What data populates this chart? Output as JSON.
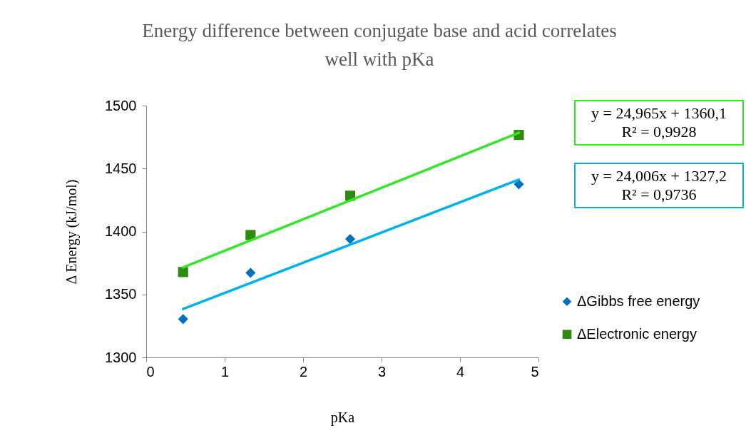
{
  "chart_data": {
    "type": "scatter",
    "title": [
      "Energy difference between conjugate base and acid correlates",
      "well with pKa"
    ],
    "xlabel": "pKa",
    "ylabel": "Δ Energy (kJ/mol)",
    "xlim": [
      0,
      5
    ],
    "xticks": [
      0,
      1,
      2,
      3,
      4,
      5
    ],
    "ylim": [
      1300,
      1500
    ],
    "yticks": [
      1300,
      1350,
      1400,
      1450,
      1500
    ],
    "legend": "right",
    "series": [
      {
        "name": "ΔGibbs free energy",
        "marker": "diamond",
        "color": "#0070c0",
        "x": [
          0.47,
          1.33,
          2.6,
          4.75
        ],
        "values": [
          1330.4,
          1367.2,
          1394,
          1437.5
        ]
      },
      {
        "name": "ΔElectronic energy",
        "marker": "square",
        "color": "#2e8b0e",
        "x": [
          0.47,
          1.33,
          2.6,
          4.75
        ],
        "values": [
          1367.8,
          1397.2,
          1428.4,
          1476.7
        ]
      },
      {
        "type": "line",
        "color": "#33e626",
        "x": [
          0.47,
          4.75
        ],
        "values": [
          1371.4,
          1478.4
        ]
      },
      {
        "type": "line",
        "color": "#00b0f0",
        "x": [
          0.47,
          4.75
        ],
        "values": [
          1338.4,
          1441.2
        ]
      }
    ],
    "annotations": [
      "y = 24,965x + 1360,1\nR² = 0,9928",
      "y = 24,006x + 1327,2\nR² = 0,9736"
    ]
  }
}
